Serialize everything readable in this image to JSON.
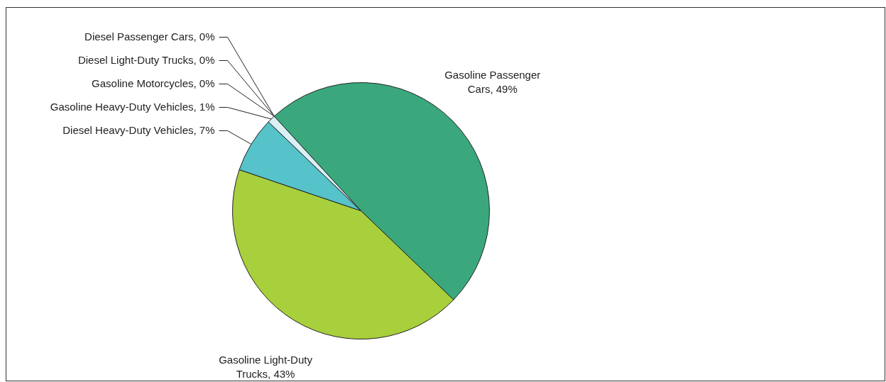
{
  "chart_data": {
    "type": "pie",
    "categories": [
      "Gasoline Passenger Cars, 49%",
      "Gasoline Light-Duty Trucks, 43%",
      "Diesel Heavy-Duty Vehicles, 7%",
      "Gasoline Heavy-Duty Vehicles, 1%",
      "Gasoline Motorcycles, 0%",
      "Diesel Light-Duty Trucks, 0%",
      "Diesel Passenger Cars, 0%"
    ],
    "values": [
      49,
      43,
      7,
      1,
      0,
      0,
      0
    ],
    "colors": [
      "#3aa87c",
      "#a8cf3c",
      "#55c3c9",
      "#d9f0f5",
      "#d9f0f5",
      "#55c3c9",
      "#3aa87c"
    ],
    "legend": false
  }
}
